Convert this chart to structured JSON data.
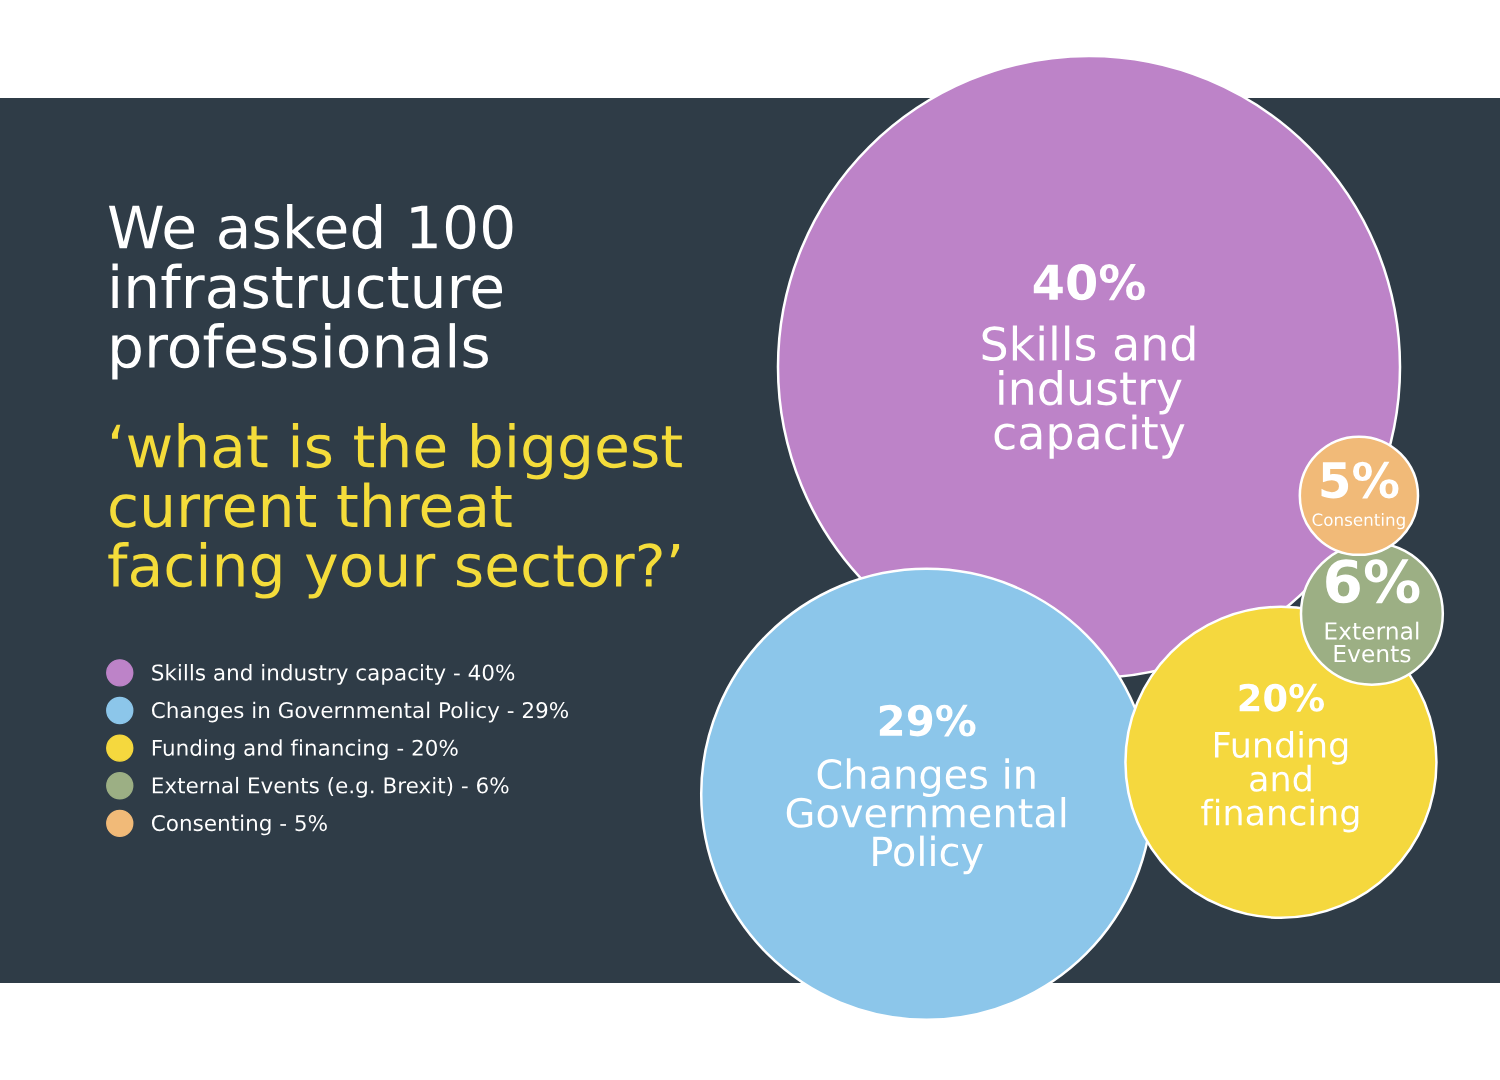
{
  "chart_data": {
    "type": "other",
    "title": "We asked 100\ninfrastructure\nprofessionals",
    "subtitle": "‘what is the biggest\ncurrent threat\nfacing your sector?’",
    "categories": [
      "Skills and\nindustry\ncapacity",
      "Changes in\nGovernmental\nPolicy",
      "Funding\nand\nfinancing",
      "External\nEvents",
      "Consenting"
    ],
    "series": [
      {
        "name": "Skills and industry capacity - 40%",
        "color": "#bd83c8",
        "values": [
          40,
          null,
          null,
          null,
          null
        ],
        "value_labels": [
          "40%",
          null,
          null,
          null,
          null
        ]
      },
      {
        "name": "Changes in Governmental Policy - 29%",
        "color": "#8cc6ea",
        "values": [
          null,
          29,
          null,
          null,
          null
        ],
        "value_labels": [
          null,
          "29%",
          null,
          null,
          null
        ]
      },
      {
        "name": "Funding and financing - 20%",
        "color": "#f5d83e",
        "values": [
          null,
          null,
          20,
          null,
          null
        ],
        "value_labels": [
          null,
          null,
          "20%",
          null,
          null
        ]
      },
      {
        "name": "External Events (e.g. Brexit) - 6%",
        "color": "#9caf84",
        "values": [
          null,
          null,
          null,
          6,
          null
        ],
        "value_labels": [
          null,
          null,
          null,
          "6%",
          null
        ]
      },
      {
        "name": "Consenting - 5%",
        "color": "#f1ba78",
        "values": [
          null,
          null,
          null,
          null,
          5
        ],
        "value_labels": [
          null,
          null,
          null,
          null,
          "5%"
        ]
      }
    ],
    "legend": "left"
  }
}
